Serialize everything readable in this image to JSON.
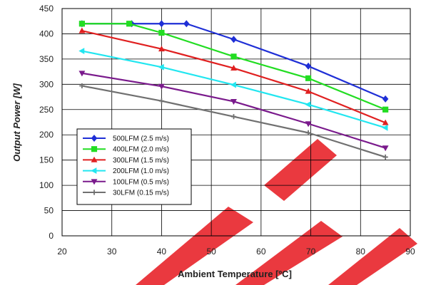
{
  "chart_data": {
    "type": "line",
    "title": "",
    "xlabel": "Ambient Temperature [ºC]",
    "ylabel": "Output Power [W]",
    "xlim": [
      20,
      90
    ],
    "ylim": [
      0,
      450
    ],
    "x_ticks": [
      20,
      30,
      40,
      50,
      60,
      70,
      80,
      90
    ],
    "y_ticks": [
      0,
      50,
      100,
      150,
      200,
      250,
      300,
      350,
      400,
      450
    ],
    "grid": true,
    "legend_position": "lower-left",
    "series": [
      {
        "name": "500LFM (2.5 m/s)",
        "color": "#1f2fd6",
        "marker": "diamond",
        "x": [
          24,
          34,
          40,
          45,
          54.5,
          69.5,
          85
        ],
        "y": [
          420,
          420,
          420,
          420,
          389,
          336,
          271
        ]
      },
      {
        "name": "400LFM (2.0 m/s)",
        "color": "#22dd22",
        "marker": "square",
        "x": [
          24,
          33.5,
          40,
          54.5,
          69.5,
          85
        ],
        "y": [
          420,
          420,
          402,
          355,
          312,
          250
        ]
      },
      {
        "name": "300LFM (1.5 m/s)",
        "color": "#e02020",
        "marker": "triangle-up",
        "x": [
          24,
          40,
          54.5,
          69.5,
          85
        ],
        "y": [
          406,
          370,
          332,
          286,
          224
        ]
      },
      {
        "name": "200LFM (1.0 m/s)",
        "color": "#22e6f0",
        "marker": "triangle-left",
        "x": [
          24,
          40,
          54.5,
          69.5,
          85
        ],
        "y": [
          366,
          334,
          299,
          260,
          214
        ]
      },
      {
        "name": "100LFM (0.5 m/s)",
        "color": "#7a1a8c",
        "marker": "triangle-down",
        "x": [
          24,
          40,
          54.5,
          69.5,
          85
        ],
        "y": [
          322,
          296,
          266,
          222,
          174
        ]
      },
      {
        "name": "30LFM (0.15 m/s)",
        "color": "#707070",
        "marker": "cross",
        "x": [
          24,
          40,
          54.5,
          69.5,
          85
        ],
        "y": [
          297,
          267,
          236,
          204,
          156
        ]
      }
    ]
  }
}
